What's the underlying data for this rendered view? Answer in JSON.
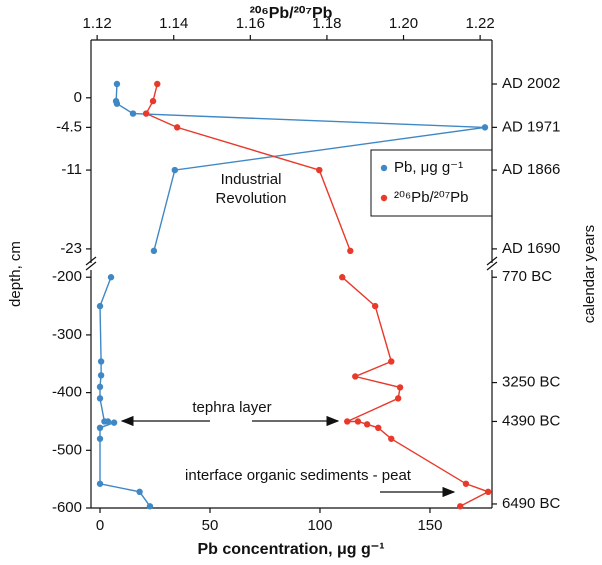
{
  "chart_data": {
    "type": "line",
    "x_title": "Pb concentration, μg g⁻¹",
    "x2_title": "²⁰⁶Pb/²⁰⁷Pb",
    "y_title": "depth, cm",
    "y2_title": "calendar years",
    "xlim": [
      -4.1,
      178.2
    ],
    "xticks": [
      0,
      50,
      100,
      150
    ],
    "x2lim": [
      1.1184,
      1.2231
    ],
    "x2ticks": [
      1.12,
      1.14,
      1.16,
      1.18,
      {
        "value": 1.2,
        "label": "1.20"
      },
      1.22
    ],
    "y_segments": [
      {
        "ylim": [
          -25.3,
          8.8
        ],
        "yticks": [
          0,
          -4.5,
          -11,
          -23
        ]
      },
      {
        "ylim": [
          -600,
          -184
        ],
        "yticks": [
          -200,
          -300,
          -400,
          -500,
          -600
        ]
      }
    ],
    "y2ticks": [
      {
        "value": 2.1,
        "label": "AD 2002"
      },
      {
        "value": -4.5,
        "label": "AD 1971"
      },
      {
        "value": -11,
        "label": "AD 1866"
      },
      {
        "value": -23,
        "label": "AD 1690"
      },
      {
        "value": -200,
        "label": "770 BC"
      },
      {
        "value": -382.6,
        "label": "3250 BC"
      },
      {
        "value": -450,
        "label": "4390 BC"
      },
      {
        "value": -593,
        "label": "6490 BC"
      }
    ],
    "series": [
      {
        "name": "Pb, μg g⁻¹",
        "color": "#3f88c5",
        "axis": "x",
        "values": [
          7.7,
          7.3,
          7.7,
          15,
          175,
          34,
          24.5,
          null,
          5,
          0,
          0.5,
          0.5,
          0,
          0,
          2,
          3.6,
          6.4,
          0,
          0,
          0,
          18,
          22.7
        ],
        "depths": [
          2.1,
          -0.5,
          -0.9,
          -2.4,
          -4.5,
          -11,
          -23.3,
          null,
          -200,
          -250,
          -346,
          -370,
          -390,
          -410,
          -450,
          -450,
          -452,
          -461,
          -480,
          -558,
          -572,
          -597
        ]
      },
      {
        "name": "²⁰⁶Pb/²⁰⁷Pb",
        "color": "#e8392b",
        "axis": "x2",
        "values": [
          1.1357,
          1.1346,
          1.1328,
          1.1409,
          1.178,
          1.1861,
          null,
          1.184,
          1.1926,
          1.1968,
          1.1874,
          1.1991,
          1.1986,
          1.1853,
          1.1881,
          1.1905,
          1.1934,
          1.1968,
          1.2163,
          1.2221,
          1.2148
        ],
        "depths": [
          2.1,
          -0.5,
          -2.4,
          -4.5,
          -11,
          -23.3,
          null,
          -200,
          -250,
          -346,
          -372,
          -391,
          -410,
          -450,
          -450,
          -455,
          -461,
          -480,
          -558,
          -572,
          -597
        ]
      }
    ],
    "annotation_industrial": [
      "Industrial",
      "Revolution"
    ],
    "annotation_tephra": "tephra layer",
    "annotation_peat": "interface organic sediments - peat"
  }
}
